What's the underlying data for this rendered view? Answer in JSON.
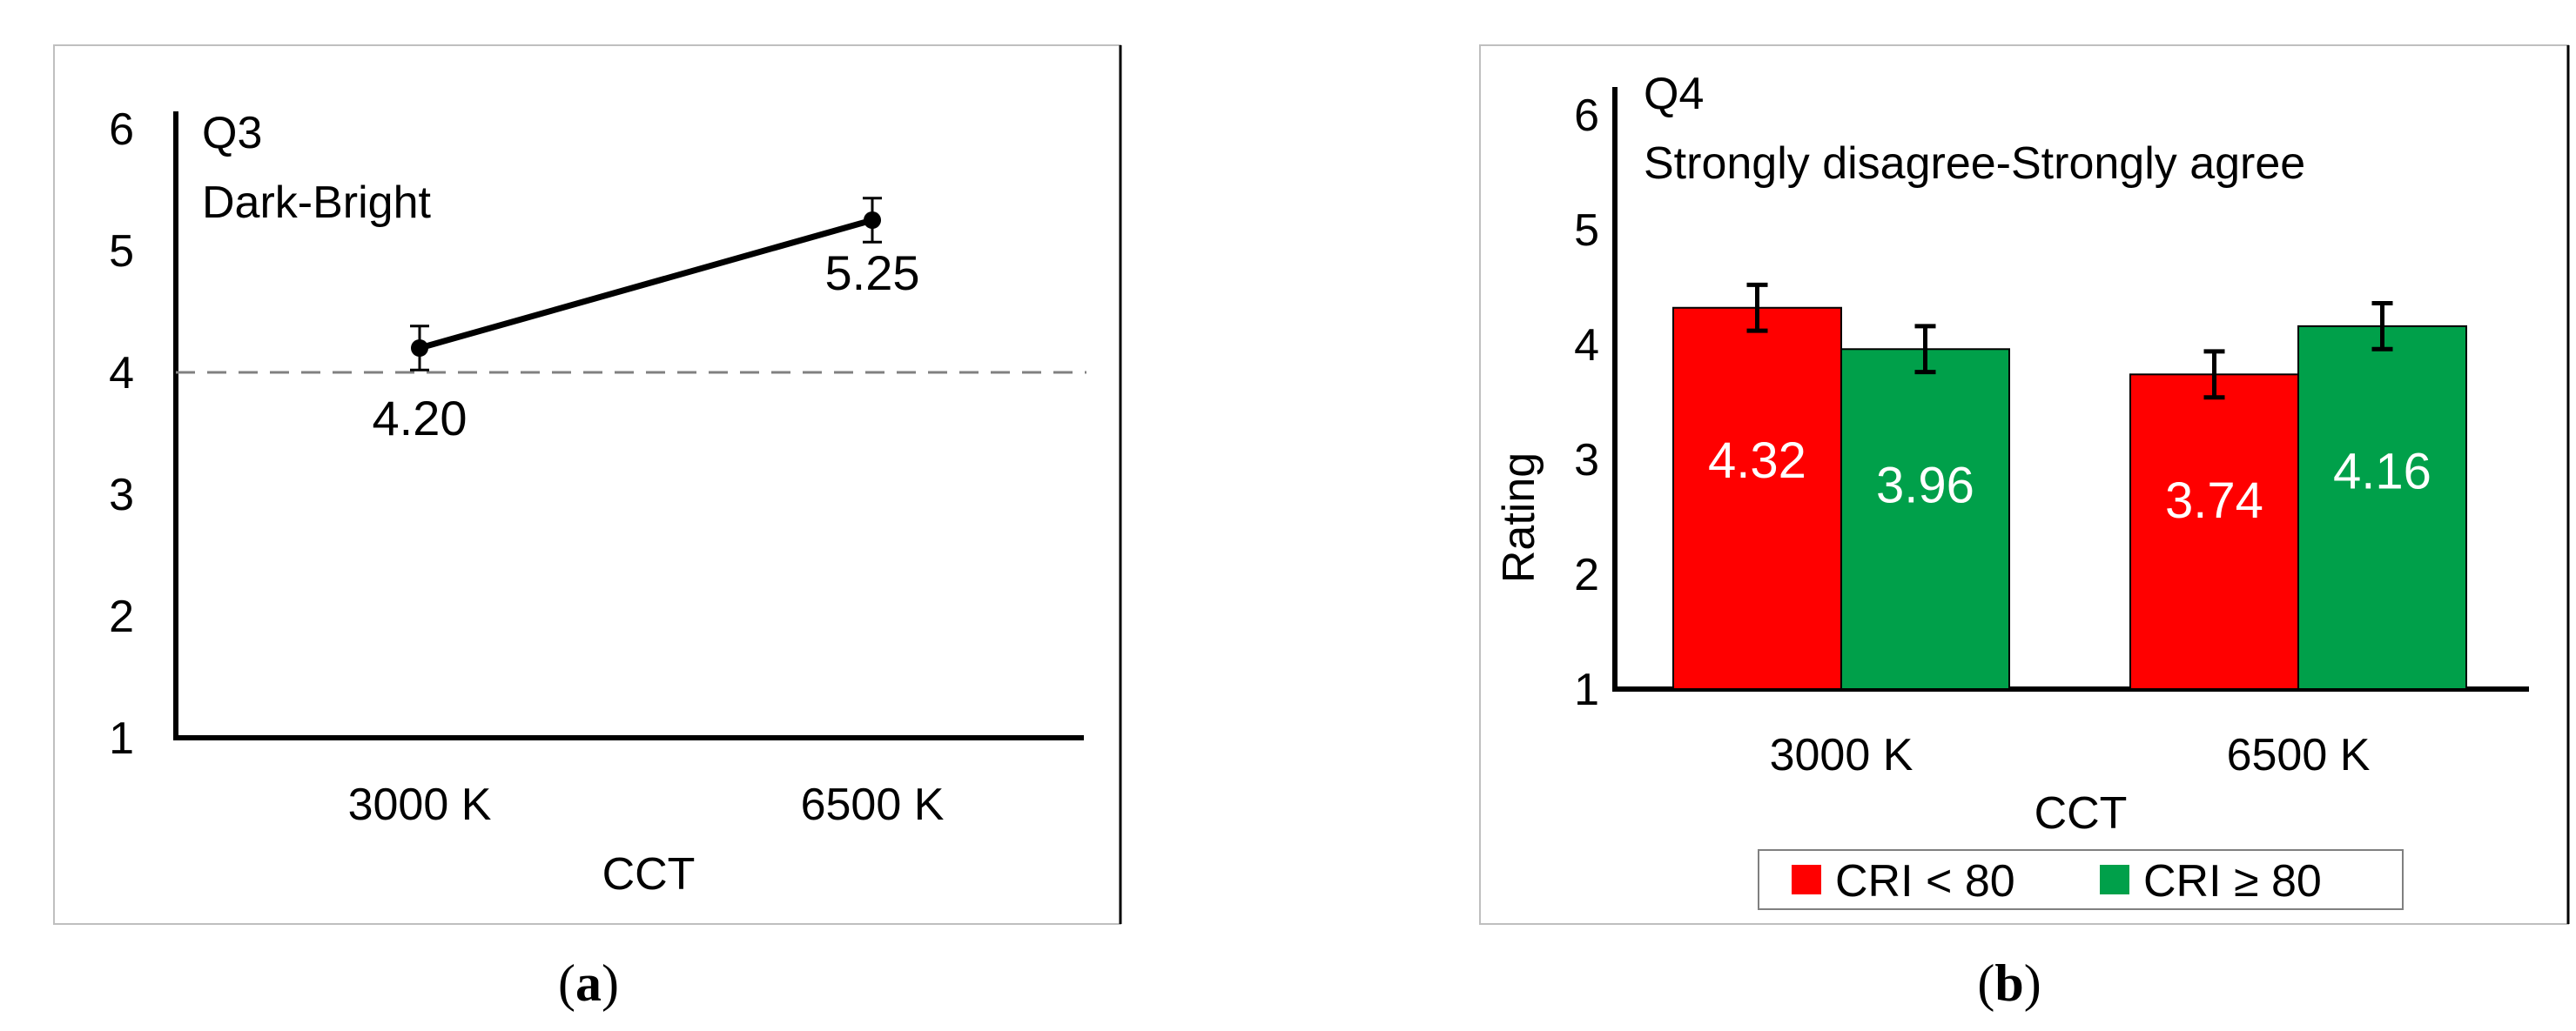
{
  "panels": [
    {
      "tag_open": "(",
      "tag_letter": "a",
      "tag_close": ")"
    },
    {
      "tag_open": "(",
      "tag_letter": "b",
      "tag_close": ")"
    }
  ],
  "chart_data": [
    {
      "type": "line",
      "title": "Q3",
      "subtitle": "Dark-Bright",
      "xlabel": "CCT",
      "ylabel": "",
      "categories": [
        "3000 K",
        "6500 K"
      ],
      "yticks": [
        1,
        2,
        3,
        4,
        5,
        6
      ],
      "ylim": [
        1,
        6
      ],
      "series": [
        {
          "values": [
            4.2,
            5.25
          ],
          "errors": [
            0.18,
            0.18
          ],
          "labels": [
            "4.20",
            "5.25"
          ],
          "color": "#000000"
        }
      ],
      "reference_line": 4,
      "grid": false
    },
    {
      "type": "bar",
      "title": "Q4",
      "subtitle": "Strongly disagree-Strongly agree",
      "xlabel": "CCT",
      "ylabel": "Rating",
      "categories": [
        "3000 K",
        "6500 K"
      ],
      "yticks": [
        1,
        2,
        3,
        4,
        5,
        6
      ],
      "ylim": [
        1,
        6.5
      ],
      "legend_position": "bottom",
      "series": [
        {
          "name": "CRI < 80",
          "values": [
            4.32,
            3.74
          ],
          "errors": [
            0.2,
            0.2
          ],
          "labels": [
            "4.32",
            "3.74"
          ],
          "color": "#ff0000"
        },
        {
          "name": "CRI ≥ 80",
          "values": [
            3.96,
            4.16
          ],
          "errors": [
            0.2,
            0.2
          ],
          "labels": [
            "3.96",
            "4.16"
          ],
          "color": "#00a04a"
        }
      ],
      "grid": false
    }
  ]
}
